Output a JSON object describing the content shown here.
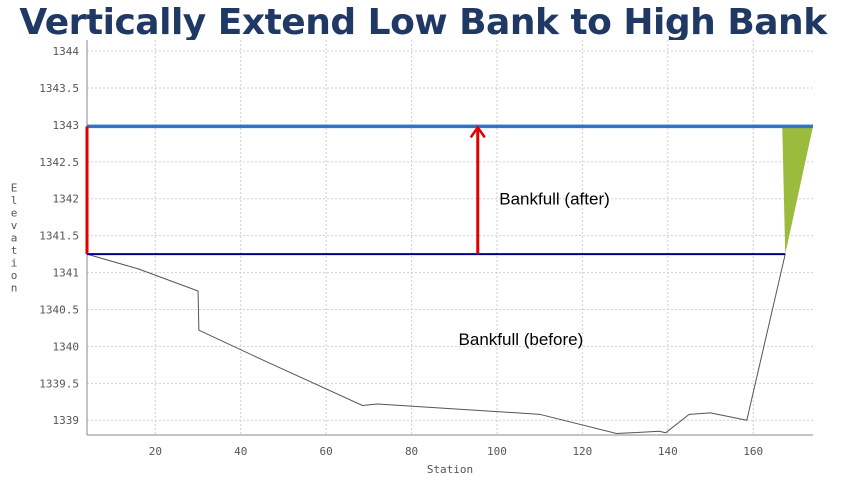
{
  "slide": {
    "title": "Vertically Extend Low Bank to High Bank"
  },
  "chart_data": {
    "type": "line",
    "title": "",
    "xlabel": "Station",
    "ylabel": "Elevation",
    "xlim": [
      4,
      174
    ],
    "ylim": [
      1338.8,
      1344.15
    ],
    "x_ticks": [
      20,
      40,
      60,
      80,
      100,
      120,
      140,
      160
    ],
    "y_ticks": [
      1339,
      1339.5,
      1340,
      1340.5,
      1341,
      1341.5,
      1342,
      1342.5,
      1343,
      1343.5,
      1344
    ],
    "grid": true,
    "series": [
      {
        "role": "ground-profile",
        "color": "#555555",
        "x": [
          4,
          16,
          30,
          30.2,
          45,
          68.5,
          72,
          110,
          128,
          138,
          139.5,
          145,
          150,
          158.5,
          167.5
        ],
        "y": [
          1341.25,
          1341.05,
          1340.75,
          1340.22,
          1339.82,
          1339.2,
          1339.22,
          1339.08,
          1338.82,
          1338.85,
          1338.83,
          1339.08,
          1339.1,
          1339.0,
          1341.25
        ]
      },
      {
        "role": "bankfull-before",
        "color": "#00008b",
        "x": [
          4,
          167.5
        ],
        "y": [
          1341.25,
          1341.25
        ]
      },
      {
        "role": "bankfull-after",
        "color": "#2e75c8",
        "x": [
          4,
          174
        ],
        "y": [
          1342.98,
          1342.98
        ]
      }
    ],
    "annotations": [
      {
        "text": "Bankfull (after)",
        "x": 101,
        "y": 1342
      },
      {
        "text": "Bankfull (before)",
        "x": 91,
        "y": 1340.1
      }
    ],
    "extension_line": {
      "color": "#e00000",
      "x": 4,
      "y_from": 1341.25,
      "y_to": 1342.98
    },
    "arrow": {
      "color": "#e00000",
      "x": 95.5,
      "y_from": 1341.25,
      "y_to": 1342.98
    },
    "fill_wedge": {
      "color": "#9bbb3c",
      "points": [
        [
          167.5,
          1341.25
        ],
        [
          166.8,
          1342.98
        ],
        [
          174,
          1342.98
        ]
      ]
    }
  }
}
